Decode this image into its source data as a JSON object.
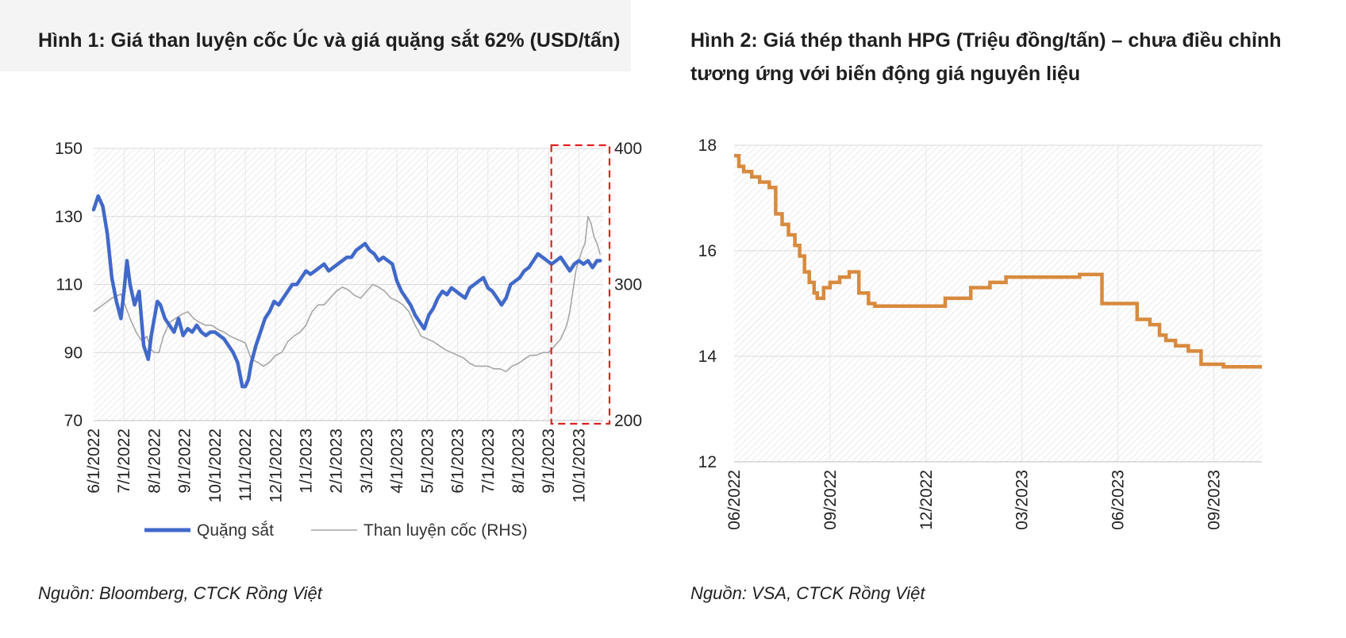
{
  "figure1": {
    "title": "Hình 1: Giá than luyện cốc Úc và giá quặng sắt 62% (USD/tấn)",
    "source": "Nguồn: Bloomberg, CTCK Rồng Việt"
  },
  "figure2": {
    "title": "Hình 2: Giá thép thanh HPG (Triệu đồng/tấn) – chưa điều chỉnh tương ứng với biến động giá nguyên liệu",
    "source": "Nguồn: VSA, CTCK Rồng Việt"
  },
  "chart_data": [
    {
      "type": "line",
      "title": "Giá than luyện cốc Úc và giá quặng sắt 62% (USD/tấn)",
      "x_tick_labels": [
        "6/1/2022",
        "7/1/2022",
        "8/1/2022",
        "9/1/2022",
        "10/1/2022",
        "11/1/2022",
        "12/1/2022",
        "1/1/2023",
        "2/1/2023",
        "3/1/2023",
        "4/1/2023",
        "5/1/2023",
        "6/1/2023",
        "7/1/2023",
        "8/1/2023",
        "9/1/2023",
        "10/1/2023"
      ],
      "x_range": [
        0,
        16.8
      ],
      "y_left": {
        "ticks": [
          150,
          130,
          110,
          90,
          70
        ],
        "ylim": [
          70,
          150
        ]
      },
      "y_right": {
        "ticks": [
          400,
          300,
          200
        ],
        "ylim": [
          200,
          400
        ]
      },
      "highlight_box": {
        "x_from": 15.3,
        "x_to": 16.8,
        "style": "dashed",
        "color": "#e02020"
      },
      "series": [
        {
          "name": "Quặng sắt",
          "axis": "left",
          "color": "#4169c9",
          "x": [
            0,
            0.15,
            0.3,
            0.45,
            0.6,
            0.75,
            0.9,
            1.0,
            1.1,
            1.2,
            1.35,
            1.5,
            1.65,
            1.8,
            1.9,
            2.0,
            2.1,
            2.2,
            2.35,
            2.5,
            2.65,
            2.8,
            2.95,
            3.1,
            3.25,
            3.4,
            3.55,
            3.7,
            3.85,
            4.0,
            4.15,
            4.3,
            4.45,
            4.6,
            4.75,
            4.9,
            5.0,
            5.1,
            5.2,
            5.35,
            5.5,
            5.65,
            5.8,
            5.95,
            6.1,
            6.25,
            6.4,
            6.55,
            6.7,
            6.85,
            7.0,
            7.15,
            7.3,
            7.45,
            7.6,
            7.75,
            7.9,
            8.05,
            8.2,
            8.35,
            8.5,
            8.65,
            8.8,
            8.95,
            9.1,
            9.25,
            9.4,
            9.55,
            9.7,
            9.85,
            10.0,
            10.15,
            10.3,
            10.45,
            10.6,
            10.75,
            10.9,
            11.05,
            11.2,
            11.35,
            11.5,
            11.65,
            11.8,
            11.95,
            12.1,
            12.25,
            12.4,
            12.55,
            12.7,
            12.85,
            13.0,
            13.15,
            13.3,
            13.45,
            13.6,
            13.75,
            13.9,
            14.05,
            14.2,
            14.35,
            14.5,
            14.65,
            14.8,
            14.95,
            15.1,
            15.25,
            15.4,
            15.55,
            15.7,
            15.85,
            16.0,
            16.15,
            16.3,
            16.45,
            16.6,
            16.7
          ],
          "y": [
            132,
            136,
            133,
            125,
            112,
            105,
            100,
            108,
            117,
            110,
            104,
            108,
            92,
            88,
            95,
            100,
            105,
            104,
            100,
            98,
            96,
            100,
            95,
            97,
            96,
            98,
            96,
            95,
            96,
            96,
            95,
            94,
            92,
            90,
            87,
            80,
            80,
            82,
            87,
            92,
            96,
            100,
            102,
            105,
            104,
            106,
            108,
            110,
            110,
            112,
            114,
            113,
            114,
            115,
            116,
            114,
            115,
            116,
            117,
            118,
            118,
            120,
            121,
            122,
            120,
            119,
            117,
            118,
            117,
            116,
            111,
            108,
            106,
            104,
            101,
            99,
            97,
            101,
            103,
            106,
            108,
            107,
            109,
            108,
            107,
            106,
            109,
            110,
            111,
            112,
            109,
            108,
            106,
            104,
            106,
            110,
            111,
            112,
            114,
            115,
            117,
            119,
            118,
            117,
            116,
            117,
            118,
            116,
            114,
            116,
            117,
            116,
            117,
            115,
            117,
            117
          ]
        },
        {
          "name": "Than luyện cốc (RHS)",
          "axis": "right",
          "color": "#a6a6a6",
          "x": [
            0,
            0.3,
            0.6,
            0.9,
            1.2,
            1.4,
            1.6,
            1.75,
            1.9,
            2.0,
            2.15,
            2.3,
            2.5,
            2.7,
            2.9,
            3.1,
            3.3,
            3.5,
            3.7,
            3.9,
            4.1,
            4.3,
            4.5,
            4.7,
            4.9,
            5.0,
            5.2,
            5.4,
            5.6,
            5.8,
            6.0,
            6.2,
            6.4,
            6.6,
            6.8,
            7.0,
            7.2,
            7.4,
            7.6,
            7.8,
            8.0,
            8.2,
            8.4,
            8.6,
            8.8,
            9.0,
            9.2,
            9.4,
            9.6,
            9.8,
            10.0,
            10.2,
            10.4,
            10.6,
            10.8,
            11.0,
            11.2,
            11.4,
            11.6,
            11.8,
            12.0,
            12.2,
            12.4,
            12.6,
            12.8,
            13.0,
            13.2,
            13.4,
            13.6,
            13.8,
            14.0,
            14.2,
            14.4,
            14.6,
            14.8,
            15.0,
            15.2,
            15.4,
            15.5,
            15.6,
            15.7,
            15.8,
            15.9,
            16.0,
            16.1,
            16.2,
            16.3,
            16.4,
            16.5,
            16.6,
            16.7
          ],
          "y": [
            280,
            285,
            290,
            293,
            275,
            265,
            258,
            262,
            252,
            250,
            250,
            262,
            272,
            275,
            278,
            280,
            275,
            272,
            270,
            270,
            267,
            265,
            262,
            260,
            258,
            257,
            245,
            243,
            240,
            243,
            248,
            250,
            258,
            262,
            265,
            270,
            280,
            285,
            285,
            290,
            295,
            298,
            296,
            292,
            290,
            295,
            300,
            298,
            295,
            290,
            288,
            285,
            280,
            270,
            262,
            260,
            258,
            255,
            252,
            250,
            248,
            246,
            242,
            240,
            240,
            240,
            238,
            238,
            236,
            240,
            242,
            245,
            248,
            248,
            250,
            250,
            255,
            260,
            265,
            270,
            280,
            295,
            310,
            318,
            325,
            330,
            350,
            345,
            335,
            330,
            322
          ]
        }
      ]
    },
    {
      "type": "line",
      "title": "Giá thép thanh HPG (Triệu đồng/tấn)",
      "x_tick_labels": [
        "06/2022",
        "09/2022",
        "12/2022",
        "03/2023",
        "06/2023",
        "09/2023"
      ],
      "x_range": [
        0,
        16.5
      ],
      "ylim": [
        12,
        18
      ],
      "y_ticks": [
        18,
        16,
        14,
        12
      ],
      "series": [
        {
          "name": "Giá thép thanh HPG",
          "color": "#d88a3e",
          "x": [
            0,
            0.15,
            0.3,
            0.55,
            0.8,
            1.1,
            1.3,
            1.5,
            1.7,
            1.9,
            2.05,
            2.2,
            2.35,
            2.5,
            2.6,
            2.8,
            3.0,
            3.3,
            3.6,
            3.9,
            4.2,
            4.4,
            6.4,
            6.6,
            7.4,
            8.0,
            8.5,
            9.0,
            10.0,
            10.8,
            11.3,
            11.5,
            12.4,
            12.6,
            13.0,
            13.3,
            13.5,
            13.8,
            14.2,
            14.6,
            15.3,
            16.5
          ],
          "y": [
            17.8,
            17.6,
            17.5,
            17.4,
            17.3,
            17.2,
            16.7,
            16.5,
            16.3,
            16.1,
            15.9,
            15.6,
            15.4,
            15.2,
            15.1,
            15.3,
            15.4,
            15.5,
            15.6,
            15.2,
            15.0,
            14.95,
            14.95,
            15.1,
            15.3,
            15.4,
            15.5,
            15.5,
            15.5,
            15.55,
            15.55,
            15.0,
            15.0,
            14.7,
            14.6,
            14.4,
            14.3,
            14.2,
            14.1,
            13.85,
            13.8,
            13.8
          ]
        }
      ]
    }
  ]
}
